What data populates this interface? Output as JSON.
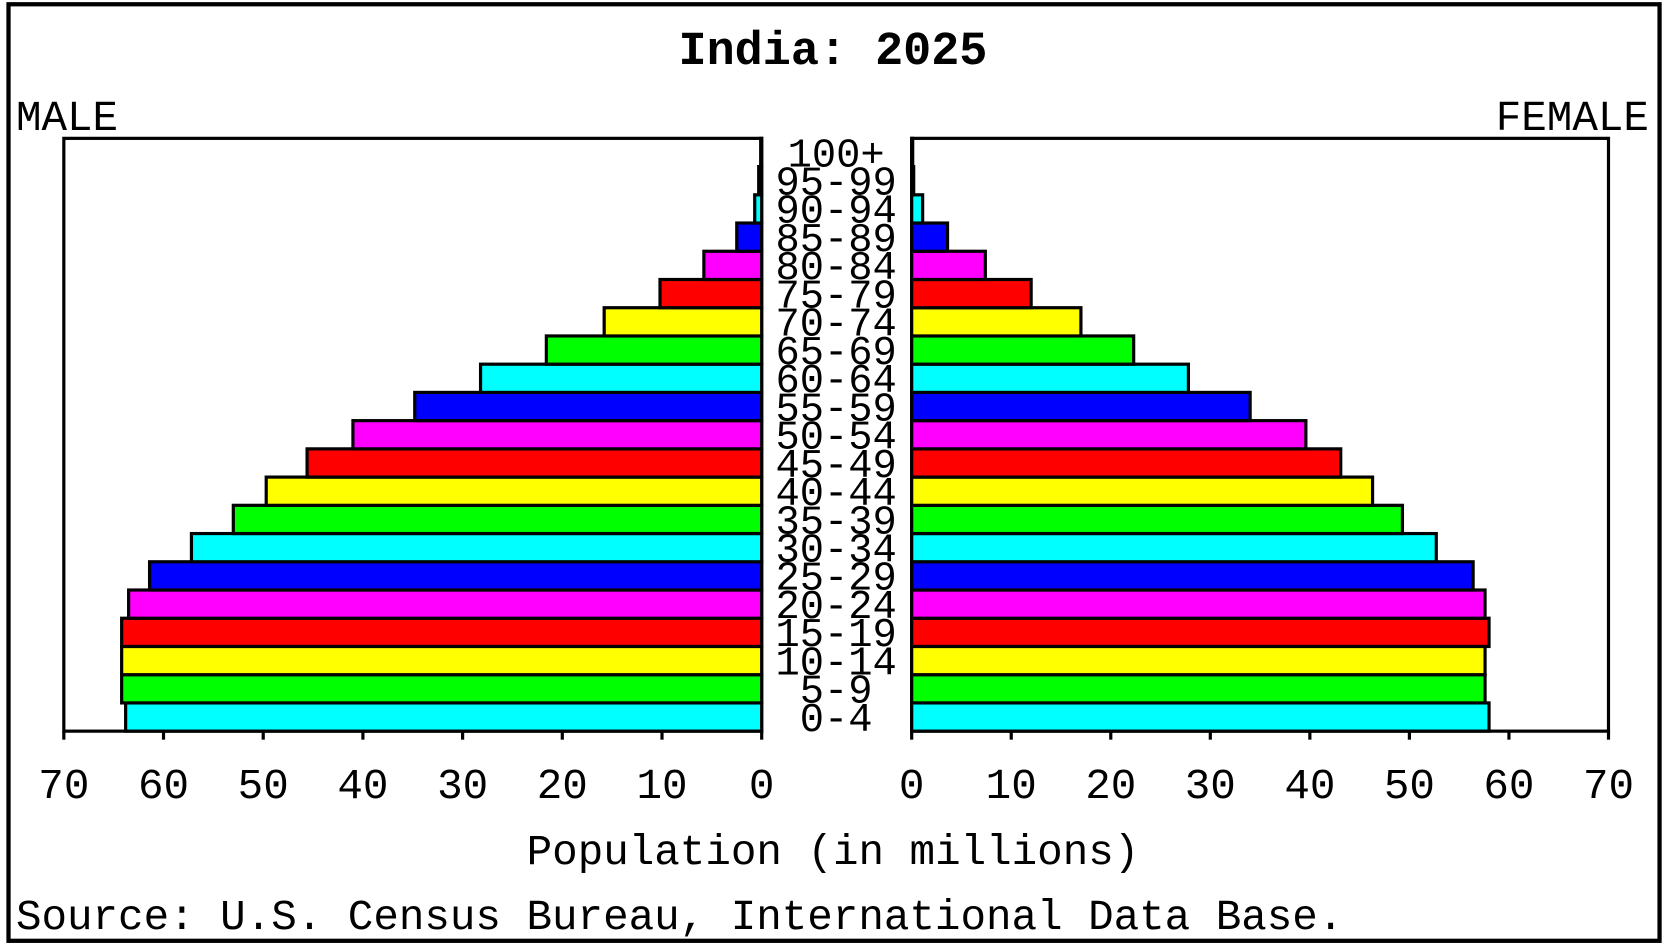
{
  "chart_data": {
    "type": "pyramid",
    "title": "India: 2025",
    "xlabel": "Population (in millions)",
    "source": "Source: U.S. Census Bureau, International Data Base.",
    "categories": [
      "0-4",
      "5-9",
      "10-14",
      "15-19",
      "20-24",
      "25-29",
      "30-34",
      "35-39",
      "40-44",
      "45-49",
      "50-54",
      "55-59",
      "60-64",
      "65-69",
      "70-74",
      "75-79",
      "80-84",
      "85-89",
      "90-94",
      "95-99",
      "100+"
    ],
    "palette": [
      "#00ffff",
      "#00ff00",
      "#ffff00",
      "#ff0000",
      "#ff00ff",
      "#0000ff"
    ],
    "series": [
      {
        "name": "MALE",
        "values": [
          63.8,
          64.2,
          64.2,
          64.2,
          63.5,
          61.4,
          57.2,
          53.0,
          49.7,
          45.6,
          41.0,
          34.8,
          28.2,
          21.6,
          15.8,
          10.2,
          5.8,
          2.5,
          0.7,
          0.3,
          0.1
        ]
      },
      {
        "name": "FEMALE",
        "values": [
          58.0,
          57.6,
          57.6,
          58.0,
          57.6,
          56.4,
          52.7,
          49.3,
          46.3,
          43.1,
          39.6,
          34.0,
          27.8,
          22.3,
          17.0,
          12.0,
          7.4,
          3.6,
          1.1,
          0.2,
          0.1
        ]
      }
    ],
    "xlim": [
      0,
      70
    ],
    "xticks": [
      0,
      10,
      20,
      30,
      40,
      50,
      60,
      70
    ]
  }
}
